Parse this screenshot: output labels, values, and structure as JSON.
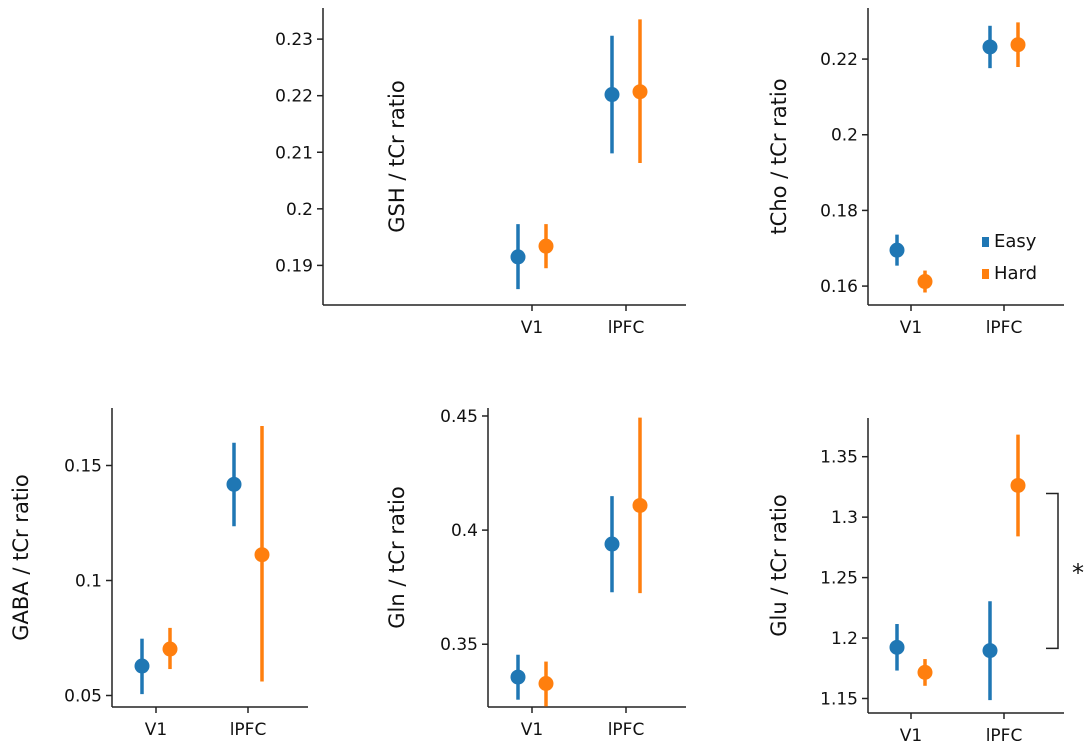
{
  "chart_data": [
    {
      "type": "scatter",
      "ylabel": "GSH / tCr ratio",
      "categories": [
        "V1",
        "lPFC"
      ],
      "ylim": [
        0.183,
        0.2355
      ],
      "yticks": [
        0.19,
        0.2,
        0.21,
        0.22,
        0.23
      ],
      "ytick_labels": [
        "0.19",
        "0.2",
        "0.21",
        "0.22",
        "0.23"
      ],
      "series": [
        {
          "name": "Easy",
          "color": "#1f77b4",
          "values": [
            0.1915,
            0.2202
          ],
          "lower": [
            0.1858,
            0.2098
          ],
          "upper": [
            0.1973,
            0.2306
          ]
        },
        {
          "name": "Hard",
          "color": "#ff7f0e",
          "values": [
            0.1934,
            0.2207
          ],
          "lower": [
            0.1895,
            0.2081
          ],
          "upper": [
            0.1973,
            0.2335
          ]
        }
      ]
    },
    {
      "type": "scatter",
      "ylabel": "tCho / tCr ratio",
      "categories": [
        "V1",
        "lPFC"
      ],
      "ylim": [
        0.155,
        0.2335
      ],
      "yticks": [
        0.16,
        0.18,
        0.2,
        0.22
      ],
      "ytick_labels": [
        "0.16",
        "0.18",
        "0.2",
        "0.22"
      ],
      "legend": {
        "position": "lower-right",
        "entries": [
          "Easy",
          "Hard"
        ]
      },
      "series": [
        {
          "name": "Easy",
          "color": "#1f77b4",
          "values": [
            0.1695,
            0.2232
          ],
          "lower": [
            0.1654,
            0.2176
          ],
          "upper": [
            0.1736,
            0.2288
          ]
        },
        {
          "name": "Hard",
          "color": "#ff7f0e",
          "values": [
            0.1612,
            0.2238
          ],
          "lower": [
            0.1583,
            0.2179
          ],
          "upper": [
            0.1641,
            0.2297
          ]
        }
      ]
    },
    {
      "type": "scatter",
      "ylabel": "GABA / tCr ratio",
      "categories": [
        "V1",
        "lPFC"
      ],
      "ylim": [
        0.045,
        0.175
      ],
      "yticks": [
        0.05,
        0.1,
        0.15
      ],
      "ytick_labels": [
        "0.05",
        "0.1",
        "0.15"
      ],
      "series": [
        {
          "name": "Easy",
          "color": "#1f77b4",
          "values": [
            0.0628,
            0.1418
          ],
          "lower": [
            0.0506,
            0.1236
          ],
          "upper": [
            0.0747,
            0.1599
          ]
        },
        {
          "name": "Hard",
          "color": "#ff7f0e",
          "values": [
            0.0702,
            0.1112
          ],
          "lower": [
            0.0615,
            0.0561
          ],
          "upper": [
            0.0794,
            0.1672
          ]
        }
      ]
    },
    {
      "type": "scatter",
      "ylabel": "Gln / tCr ratio",
      "categories": [
        "V1",
        "lPFC"
      ],
      "ylim": [
        0.3225,
        0.4535
      ],
      "yticks": [
        0.35,
        0.4,
        0.45
      ],
      "ytick_labels": [
        "0.35",
        "0.4",
        "0.45"
      ],
      "series": [
        {
          "name": "Easy",
          "color": "#1f77b4",
          "values": [
            0.3356,
            0.3939
          ],
          "lower": [
            0.3257,
            0.3728
          ],
          "upper": [
            0.3454,
            0.4149
          ]
        },
        {
          "name": "Hard",
          "color": "#ff7f0e",
          "values": [
            0.3328,
            0.4108
          ],
          "lower": [
            0.3228,
            0.3724
          ],
          "upper": [
            0.3424,
            0.4493
          ]
        }
      ]
    },
    {
      "type": "scatter",
      "ylabel": "Glu / tCr ratio",
      "categories": [
        "V1",
        "lPFC"
      ],
      "ylim": [
        1.138,
        1.382
      ],
      "yticks": [
        1.15,
        1.2,
        1.25,
        1.3,
        1.35
      ],
      "ytick_labels": [
        "1.15",
        "1.2",
        "1.25",
        "1.3",
        "1.35"
      ],
      "annotation": "*",
      "series": [
        {
          "name": "Easy",
          "color": "#1f77b4",
          "values": [
            1.1923,
            1.1896
          ],
          "lower": [
            1.1731,
            1.1487
          ],
          "upper": [
            1.2116,
            1.2304
          ]
        },
        {
          "name": "Hard",
          "color": "#ff7f0e",
          "values": [
            1.1716,
            1.3262
          ],
          "lower": [
            1.1605,
            1.2841
          ],
          "upper": [
            1.1826,
            1.3683
          ]
        }
      ]
    }
  ]
}
